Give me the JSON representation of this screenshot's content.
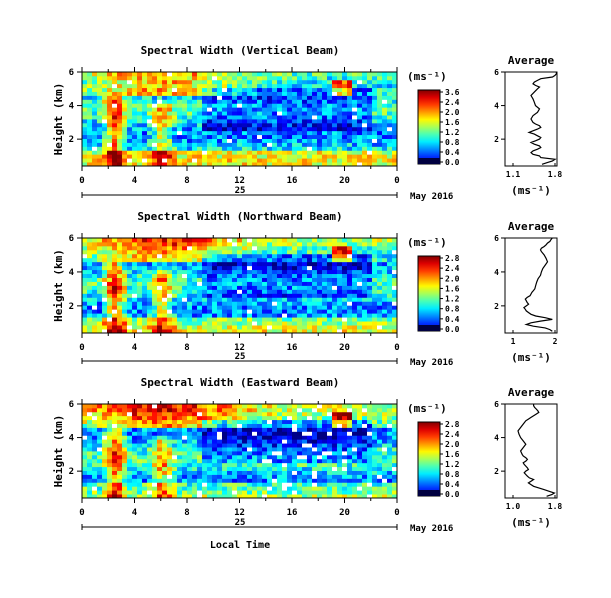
{
  "figure": {
    "xlabel": "Local Time",
    "date_label": "May 2016",
    "day_label": "25",
    "time_ticks": [
      "0",
      "4",
      "8",
      "12",
      "16",
      "20",
      "0"
    ],
    "height_label": "Height (km)",
    "colorbar_unit": "(ms⁻¹)",
    "avg_unit": "(ms⁻¹)",
    "avg_title": "Average",
    "height_ticks": [
      "6",
      "4",
      "2"
    ],
    "colors": {
      "low": "#000080",
      "mid": "#00ff80",
      "high": "#ff0000"
    }
  },
  "chart_data": [
    {
      "type": "heatmap",
      "title": "Spectral Width (Vertical Beam)",
      "x_range_hours": [
        0,
        24
      ],
      "y_range_km": [
        0.4,
        6
      ],
      "colorbar_ticks": [
        "3.6",
        "2.4",
        "2.0",
        "1.6",
        "1.2",
        "0.8",
        "0.4",
        "0.0"
      ]
    },
    {
      "type": "heatmap",
      "title": "Spectral Width (Northward Beam)",
      "x_range_hours": [
        0,
        24
      ],
      "y_range_km": [
        0.4,
        6
      ],
      "colorbar_ticks": [
        "2.8",
        "2.4",
        "2.0",
        "1.6",
        "1.2",
        "0.8",
        "0.4",
        "0.0"
      ]
    },
    {
      "type": "heatmap",
      "title": "Spectral Width (Eastward Beam)",
      "x_range_hours": [
        0,
        24
      ],
      "y_range_km": [
        0.4,
        6
      ],
      "colorbar_ticks": [
        "2.8",
        "2.4",
        "2.0",
        "1.6",
        "1.2",
        "0.8",
        "0.4",
        "0.0"
      ]
    },
    {
      "type": "line",
      "title": "Average",
      "xlim": [
        1.05,
        1.85
      ],
      "xticks": [
        "1.1",
        "1.8"
      ],
      "y_range_km": [
        0.4,
        6
      ],
      "x": [
        1.62,
        1.7,
        1.78,
        1.82,
        1.6,
        1.58,
        1.48,
        1.45,
        1.48,
        1.55,
        1.6,
        1.58,
        1.5,
        1.45,
        1.52,
        1.58,
        1.6,
        1.55,
        1.5,
        1.42,
        1.48,
        1.55,
        1.6,
        1.58,
        1.52,
        1.48,
        1.45,
        1.48,
        1.55,
        1.58,
        1.52,
        1.5,
        1.48,
        1.45,
        1.5,
        1.55,
        1.58,
        1.52,
        1.48,
        1.5,
        1.55,
        1.6,
        1.78,
        1.82,
        1.84,
        1.84
      ],
      "y": [
        0.5,
        0.6,
        0.7,
        0.8,
        0.9,
        1.0,
        1.1,
        1.2,
        1.3,
        1.4,
        1.5,
        1.6,
        1.7,
        1.8,
        1.9,
        2.0,
        2.1,
        2.2,
        2.3,
        2.4,
        2.5,
        2.6,
        2.7,
        2.8,
        2.9,
        3.0,
        3.2,
        3.4,
        3.6,
        3.8,
        4.0,
        4.2,
        4.4,
        4.6,
        4.8,
        5.0,
        5.1,
        5.2,
        5.3,
        5.4,
        5.5,
        5.6,
        5.7,
        5.8,
        5.9,
        6.0
      ]
    },
    {
      "type": "line",
      "title": "Average",
      "xlim": [
        0.95,
        2.05
      ],
      "xticks": [
        "1",
        "2"
      ],
      "y_range_km": [
        0.4,
        6
      ],
      "x": [
        1.95,
        1.9,
        1.8,
        1.55,
        1.4,
        1.5,
        1.7,
        1.95,
        1.8,
        1.6,
        1.5,
        1.45,
        1.4,
        1.38,
        1.35,
        1.4,
        1.45,
        1.42,
        1.4,
        1.38,
        1.42,
        1.48,
        1.5,
        1.52,
        1.55,
        1.58,
        1.6,
        1.62,
        1.65,
        1.7,
        1.72,
        1.75,
        1.8,
        1.85,
        1.82,
        1.78,
        1.75,
        1.72,
        1.7,
        1.72,
        1.78,
        1.82,
        1.85,
        1.9,
        1.92,
        1.95
      ],
      "y": [
        0.5,
        0.6,
        0.7,
        0.8,
        0.9,
        1.0,
        1.1,
        1.2,
        1.3,
        1.4,
        1.5,
        1.6,
        1.7,
        1.8,
        1.9,
        2.0,
        2.1,
        2.2,
        2.3,
        2.4,
        2.5,
        2.6,
        2.7,
        2.8,
        2.9,
        3.0,
        3.2,
        3.4,
        3.6,
        3.8,
        4.0,
        4.2,
        4.4,
        4.6,
        4.8,
        5.0,
        5.1,
        5.2,
        5.3,
        5.4,
        5.5,
        5.6,
        5.7,
        5.8,
        5.9,
        6.0
      ]
    },
    {
      "type": "line",
      "title": "Average",
      "xlim": [
        0.95,
        1.95
      ],
      "xticks": [
        "1.0",
        "1.8"
      ],
      "y_range_km": [
        0.4,
        6
      ],
      "x": [
        1.75,
        1.85,
        1.9,
        1.8,
        1.7,
        1.6,
        1.5,
        1.45,
        1.4,
        1.45,
        1.5,
        1.42,
        1.38,
        1.35,
        1.32,
        1.35,
        1.4,
        1.38,
        1.35,
        1.32,
        1.3,
        1.35,
        1.38,
        1.35,
        1.3,
        1.28,
        1.25,
        1.3,
        1.35,
        1.3,
        1.25,
        1.22,
        1.2,
        1.25,
        1.3,
        1.35,
        1.4,
        1.45,
        1.5,
        1.55,
        1.6,
        1.58,
        1.55,
        1.52,
        1.5,
        1.5
      ],
      "y": [
        0.5,
        0.6,
        0.7,
        0.8,
        0.9,
        1.0,
        1.1,
        1.2,
        1.3,
        1.4,
        1.5,
        1.6,
        1.7,
        1.8,
        1.9,
        2.0,
        2.1,
        2.2,
        2.3,
        2.4,
        2.5,
        2.6,
        2.7,
        2.8,
        2.9,
        3.0,
        3.2,
        3.4,
        3.6,
        3.8,
        4.0,
        4.2,
        4.4,
        4.6,
        4.8,
        5.0,
        5.1,
        5.2,
        5.3,
        5.4,
        5.5,
        5.6,
        5.7,
        5.8,
        5.9,
        6.0
      ]
    }
  ]
}
